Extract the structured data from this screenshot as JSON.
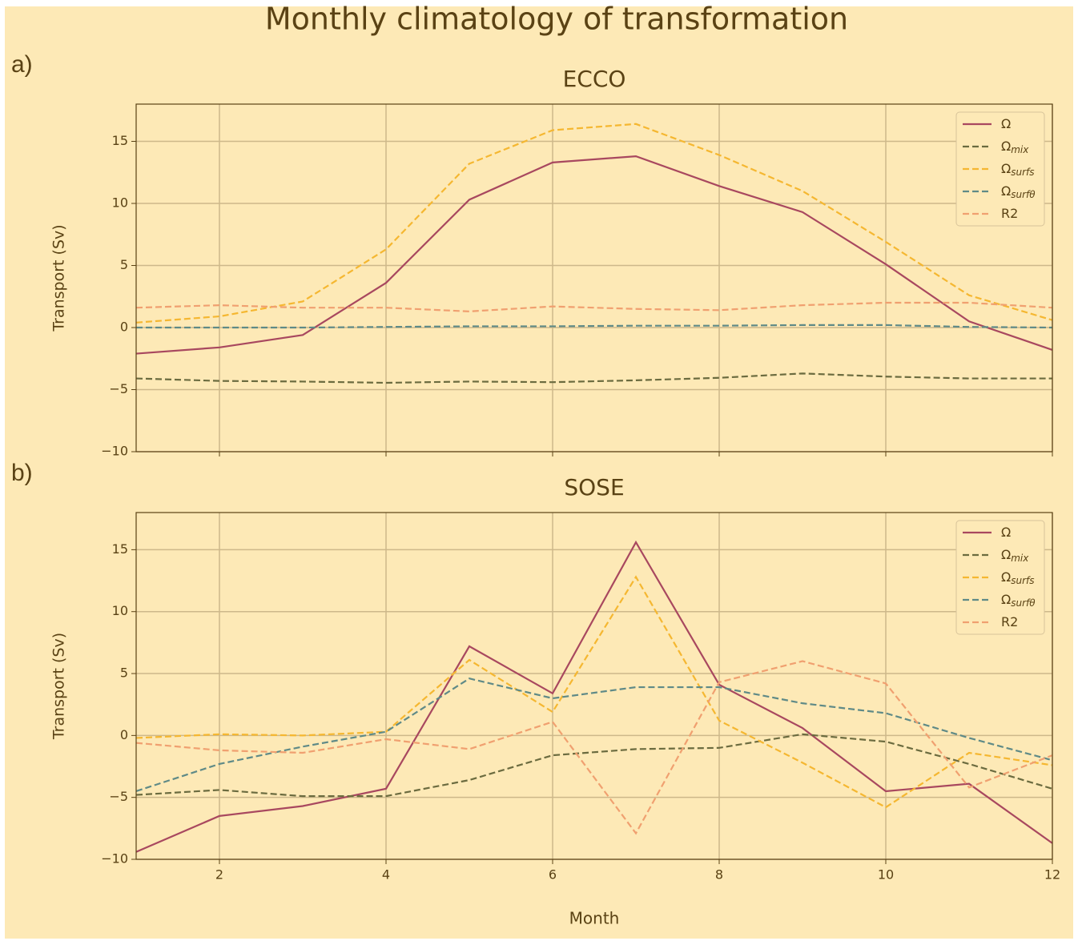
{
  "title": "Monthly climatology of transformation",
  "chart_data": [
    {
      "type": "line",
      "panel_label": "a)",
      "title": "ECCO",
      "ylabel": "Transport (Sv)",
      "x": [
        1,
        2,
        3,
        4,
        5,
        6,
        7,
        8,
        9,
        10,
        11,
        12
      ],
      "xlim": [
        1,
        12
      ],
      "xticks": [
        2,
        4,
        6,
        8,
        10,
        12
      ],
      "ylim": [
        -10,
        18
      ],
      "yticks": [
        -10,
        -5,
        0,
        5,
        10,
        15
      ],
      "grid": true,
      "legend": "upper right",
      "series": [
        {
          "name": "Ω",
          "color": "#a8485f",
          "linestyle": "solid",
          "values": [
            -2.1,
            -1.6,
            -0.6,
            3.6,
            10.3,
            13.3,
            13.8,
            11.4,
            9.3,
            5.1,
            0.5,
            -1.8
          ]
        },
        {
          "name": "Ωmix",
          "color": "#6b6b3f",
          "linestyle": "dashed",
          "values": [
            -4.1,
            -4.3,
            -4.35,
            -4.45,
            -4.35,
            -4.4,
            -4.25,
            -4.05,
            -3.7,
            -3.95,
            -4.1,
            -4.1
          ]
        },
        {
          "name": "Ωsurfs",
          "color": "#f5b731",
          "linestyle": "dashed",
          "values": [
            0.4,
            0.9,
            2.1,
            6.3,
            13.2,
            15.9,
            16.4,
            13.9,
            11.0,
            6.9,
            2.6,
            0.6
          ]
        },
        {
          "name": "Ωsurfθ",
          "color": "#5f8a87",
          "linestyle": "dashed",
          "values": [
            0,
            0,
            0,
            0.05,
            0.1,
            0.1,
            0.15,
            0.15,
            0.2,
            0.2,
            0.05,
            0
          ]
        },
        {
          "name": "R2",
          "color": "#f0a070",
          "linestyle": "dashed",
          "values": [
            1.6,
            1.8,
            1.6,
            1.6,
            1.3,
            1.7,
            1.5,
            1.4,
            1.8,
            2.0,
            2.0,
            1.6
          ]
        }
      ]
    },
    {
      "type": "line",
      "panel_label": "b)",
      "title": "SOSE",
      "ylabel": "Transport (Sv)",
      "xlabel": "Month",
      "x": [
        1,
        2,
        3,
        4,
        5,
        6,
        7,
        8,
        9,
        10,
        11,
        12
      ],
      "xlim": [
        1,
        12
      ],
      "xticks": [
        2,
        4,
        6,
        8,
        10,
        12
      ],
      "ylim": [
        -10,
        18
      ],
      "yticks": [
        -10,
        -5,
        0,
        5,
        10,
        15
      ],
      "grid": true,
      "legend": "upper right",
      "series": [
        {
          "name": "Ω",
          "color": "#a8485f",
          "linestyle": "solid",
          "values": [
            -9.4,
            -6.5,
            -5.7,
            -4.3,
            7.2,
            3.4,
            15.6,
            4.1,
            0.6,
            -4.5,
            -3.9,
            -8.7
          ]
        },
        {
          "name": "Ωmix",
          "color": "#6b6b3f",
          "linestyle": "dashed",
          "values": [
            -4.8,
            -4.4,
            -4.9,
            -4.9,
            -3.6,
            -1.6,
            -1.1,
            -1.0,
            0.1,
            -0.5,
            -2.3,
            -4.3
          ]
        },
        {
          "name": "Ωsurfs",
          "color": "#f5b731",
          "linestyle": "dashed",
          "values": [
            -0.2,
            0.1,
            0.0,
            0.3,
            6.1,
            1.9,
            12.8,
            1.2,
            -2.2,
            -5.8,
            -1.4,
            -2.4
          ]
        },
        {
          "name": "Ωsurfθ",
          "color": "#5f8a87",
          "linestyle": "dashed",
          "values": [
            -4.5,
            -2.3,
            -0.9,
            0.3,
            4.6,
            3.0,
            3.9,
            3.9,
            2.6,
            1.8,
            -0.2,
            -2.0
          ]
        },
        {
          "name": "R2",
          "color": "#f0a070",
          "linestyle": "dashed",
          "values": [
            -0.6,
            -1.2,
            -1.4,
            -0.3,
            -1.1,
            1.1,
            -7.9,
            4.3,
            6.0,
            4.2,
            -4.2,
            -1.6
          ]
        }
      ]
    }
  ]
}
